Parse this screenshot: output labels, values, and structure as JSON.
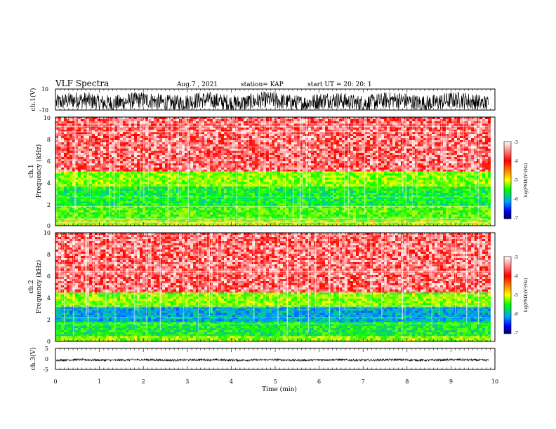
{
  "header": {
    "title": "VLF Spectra",
    "date": "Aug.7 , 2021",
    "station": "station= KAP",
    "start": "start UT = 20: 20: 1"
  },
  "colors": {
    "background": "#ffffff",
    "axis": "#000000",
    "spectrogram_base": "#ef3a3a",
    "colormap": [
      "#ffffff",
      "#ff0000",
      "#ffff00",
      "#00ff00",
      "#00a0ff",
      "#0000ff",
      "#000066"
    ]
  },
  "chart_data": [
    {
      "type": "line",
      "panel": "ch.1 waveform",
      "ylabel": "ch.1(V)",
      "ylim": [
        -10,
        10
      ],
      "yticks": [
        "10",
        "-10"
      ],
      "x_range_min": [
        0,
        9.85
      ],
      "description_values": {
        "baseline_V": -2,
        "amplitude_V": 8
      }
    },
    {
      "type": "heatmap",
      "panel": "ch.1 spectrogram",
      "ylabel_top": "ch.1",
      "ylabel": "Frequency (kHz)",
      "ylim": [
        0,
        10
      ],
      "yticks": [
        "0",
        "2",
        "4",
        "6",
        "8",
        "10"
      ],
      "x_range_min": [
        0,
        9.85
      ],
      "bands": [
        {
          "f_from": 0,
          "f_to": 0.5,
          "level": 0.45
        },
        {
          "f_from": 0.5,
          "f_to": 1.8,
          "level": 0.55
        },
        {
          "f_from": 1.8,
          "f_to": 3.6,
          "level": 0.62
        },
        {
          "f_from": 3.6,
          "f_to": 5.0,
          "level": 0.5
        },
        {
          "f_from": 5.0,
          "f_to": 10.0,
          "level": 0.12
        }
      ],
      "colorbar": {
        "label": "log(PSD)(V²/Hz)",
        "range": [
          -7,
          -3
        ],
        "ticks": [
          "-3",
          "-4",
          "-5",
          "-6",
          "-7"
        ]
      }
    },
    {
      "type": "heatmap",
      "panel": "ch.2 spectrogram",
      "ylabel_top": "ch.2",
      "ylabel": "Frequency (kHz)",
      "ylim": [
        0,
        10
      ],
      "yticks": [
        "0",
        "2",
        "4",
        "6",
        "8",
        "10"
      ],
      "x_range_min": [
        0,
        9.85
      ],
      "bands": [
        {
          "f_from": 0,
          "f_to": 0.5,
          "level": 0.5
        },
        {
          "f_from": 0.5,
          "f_to": 1.8,
          "level": 0.62
        },
        {
          "f_from": 1.8,
          "f_to": 3.2,
          "level": 0.78
        },
        {
          "f_from": 3.2,
          "f_to": 4.5,
          "level": 0.5
        },
        {
          "f_from": 4.5,
          "f_to": 10.0,
          "level": 0.12
        }
      ],
      "colorbar": {
        "label": "log(PSD)(V²/Hz)",
        "range": [
          -7,
          -3
        ],
        "ticks": [
          "-3",
          "-4",
          "-5",
          "-6",
          "-7"
        ]
      }
    },
    {
      "type": "line",
      "panel": "ch.3 waveform",
      "ylabel": "ch.3(V)",
      "ylim": [
        -5,
        5
      ],
      "yticks": [
        "5",
        "0",
        "-5"
      ],
      "x_range_min": [
        0,
        9.85
      ],
      "description_values": {
        "baseline_V": -0.5,
        "amplitude_V": 0.5
      }
    }
  ],
  "x_axis": {
    "label": "Time (min)",
    "range": [
      0,
      10
    ],
    "ticks": [
      "0",
      "1",
      "2",
      "3",
      "4",
      "5",
      "6",
      "7",
      "8",
      "9",
      "10"
    ]
  }
}
